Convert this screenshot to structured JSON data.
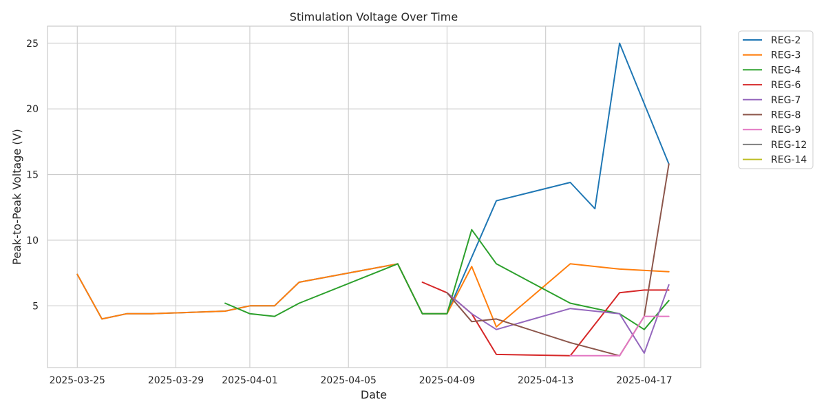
{
  "chart_data": {
    "type": "line",
    "title": "Stimulation Voltage Over Time",
    "xlabel": "Date",
    "ylabel": "Peak-to-Peak Voltage (V)",
    "xlim": [
      "2025-03-23T19:00",
      "2025-04-19T07:00"
    ],
    "ylim": [
      0.3,
      26.3
    ],
    "x_ticks": [
      "2025-03-25",
      "2025-03-29",
      "2025-04-01",
      "2025-04-05",
      "2025-04-09",
      "2025-04-13",
      "2025-04-17"
    ],
    "y_ticks": [
      5,
      10,
      15,
      20,
      25
    ],
    "grid": true,
    "legend_position": "outside-top-right",
    "series": [
      {
        "name": "REG-2",
        "color": "#1f77b4",
        "points": [
          [
            "2025-03-25",
            7.4
          ],
          [
            "2025-03-26",
            4.0
          ],
          [
            "2025-03-27",
            4.4
          ],
          [
            "2025-03-28",
            4.4
          ],
          [
            "2025-03-31",
            4.6
          ],
          [
            "2025-04-01",
            5.0
          ],
          [
            "2025-04-02",
            5.0
          ],
          [
            "2025-04-03",
            6.8
          ],
          [
            "2025-04-07",
            8.2
          ],
          [
            "2025-04-08",
            4.4
          ],
          [
            "2025-04-09",
            4.4
          ],
          [
            "2025-04-11",
            13.0
          ],
          [
            "2025-04-14",
            14.4
          ],
          [
            "2025-04-15",
            12.4
          ],
          [
            "2025-04-16",
            25.0
          ],
          [
            "2025-04-18",
            15.8
          ]
        ]
      },
      {
        "name": "REG-3",
        "color": "#ff7f0e",
        "points": [
          [
            "2025-03-25",
            7.4
          ],
          [
            "2025-03-26",
            4.0
          ],
          [
            "2025-03-27",
            4.4
          ],
          [
            "2025-03-28",
            4.4
          ],
          [
            "2025-03-31",
            4.6
          ],
          [
            "2025-04-01",
            5.0
          ],
          [
            "2025-04-02",
            5.0
          ],
          [
            "2025-04-03",
            6.8
          ],
          [
            "2025-04-07",
            8.2
          ],
          [
            "2025-04-08",
            4.4
          ],
          [
            "2025-04-09",
            4.4
          ],
          [
            "2025-04-10",
            8.0
          ],
          [
            "2025-04-11",
            3.4
          ],
          [
            "2025-04-14",
            8.2
          ],
          [
            "2025-04-16",
            7.8
          ],
          [
            "2025-04-18",
            7.6
          ]
        ]
      },
      {
        "name": "REG-4",
        "color": "#2ca02c",
        "points": [
          [
            "2025-03-31",
            5.2
          ],
          [
            "2025-04-01",
            4.4
          ],
          [
            "2025-04-02",
            4.2
          ],
          [
            "2025-04-03",
            5.2
          ],
          [
            "2025-04-07",
            8.2
          ],
          [
            "2025-04-08",
            4.4
          ],
          [
            "2025-04-09",
            4.4
          ],
          [
            "2025-04-10",
            10.8
          ],
          [
            "2025-04-11",
            8.2
          ],
          [
            "2025-04-14",
            5.2
          ],
          [
            "2025-04-16",
            4.4
          ],
          [
            "2025-04-17",
            3.2
          ],
          [
            "2025-04-18",
            5.4
          ]
        ]
      },
      {
        "name": "REG-6",
        "color": "#d62728",
        "points": [
          [
            "2025-04-08",
            6.8
          ],
          [
            "2025-04-09",
            6.0
          ],
          [
            "2025-04-10",
            4.4
          ],
          [
            "2025-04-11",
            1.3
          ],
          [
            "2025-04-14",
            1.2
          ],
          [
            "2025-04-16",
            6.0
          ],
          [
            "2025-04-17",
            6.2
          ],
          [
            "2025-04-18",
            6.2
          ]
        ]
      },
      {
        "name": "REG-7",
        "color": "#9467bd",
        "points": [
          [
            "2025-04-09",
            6.0
          ],
          [
            "2025-04-10",
            4.4
          ],
          [
            "2025-04-11",
            3.2
          ],
          [
            "2025-04-14",
            4.8
          ],
          [
            "2025-04-16",
            4.4
          ],
          [
            "2025-04-17",
            1.4
          ],
          [
            "2025-04-18",
            6.6
          ]
        ]
      },
      {
        "name": "REG-8",
        "color": "#8c564b",
        "points": [
          [
            "2025-04-09",
            6.0
          ],
          [
            "2025-04-10",
            3.8
          ],
          [
            "2025-04-11",
            4.0
          ],
          [
            "2025-04-14",
            2.2
          ],
          [
            "2025-04-16",
            1.2
          ],
          [
            "2025-04-17",
            4.2
          ],
          [
            "2025-04-18",
            15.8
          ]
        ]
      },
      {
        "name": "REG-9",
        "color": "#e377c2",
        "points": [
          [
            "2025-04-14",
            1.2
          ],
          [
            "2025-04-16",
            1.2
          ],
          [
            "2025-04-17",
            4.2
          ],
          [
            "2025-04-18",
            4.2
          ]
        ]
      },
      {
        "name": "REG-12",
        "color": "#7f7f7f",
        "points": []
      },
      {
        "name": "REG-14",
        "color": "#bcbd22",
        "points": []
      }
    ]
  }
}
